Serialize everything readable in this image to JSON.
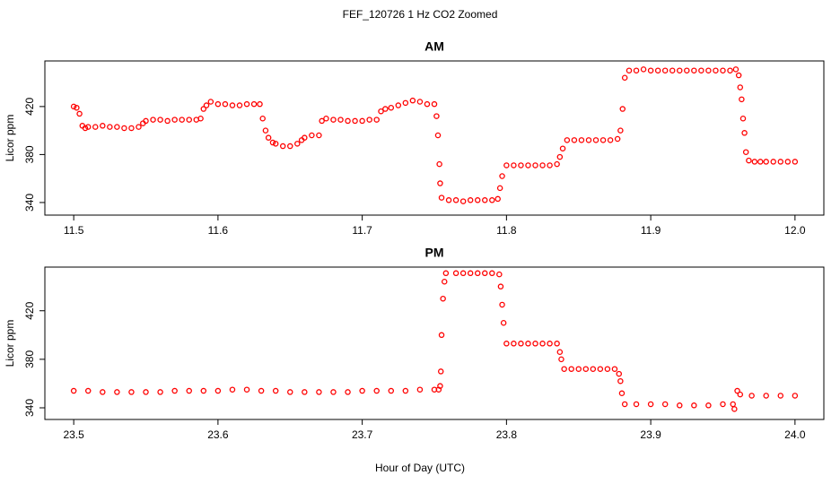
{
  "title": "FEF_120726  1 Hz CO2 Zoomed",
  "x_label": "Hour of Day (UTC)",
  "chart_data": [
    {
      "type": "scatter",
      "title": "AM",
      "y_label": "Licor ppm",
      "color": "#ff0000",
      "xlim": [
        11.48,
        12.02
      ],
      "ylim": [
        329.5,
        458
      ],
      "xticks": [
        11.5,
        11.6,
        11.7,
        11.8,
        11.9,
        {
          "value": 12,
          "label": "12.0"
        }
      ],
      "yticks": [
        340,
        380,
        420
      ],
      "x": [
        11.5,
        11.502,
        11.504,
        11.506,
        11.508,
        11.51,
        11.515,
        11.52,
        11.525,
        11.53,
        11.535,
        11.54,
        11.545,
        11.548,
        11.55,
        11.555,
        11.56,
        11.565,
        11.57,
        11.575,
        11.58,
        11.585,
        11.588,
        11.59,
        11.592,
        11.595,
        11.6,
        11.605,
        11.61,
        11.615,
        11.62,
        11.625,
        11.629,
        11.631,
        11.633,
        11.635,
        11.638,
        11.64,
        11.645,
        11.65,
        11.655,
        11.658,
        11.66,
        11.665,
        11.67,
        11.672,
        11.675,
        11.68,
        11.685,
        11.69,
        11.695,
        11.7,
        11.705,
        11.71,
        11.713,
        11.716,
        11.72,
        11.725,
        11.73,
        11.735,
        11.74,
        11.745,
        11.75,
        11.7515,
        11.7525,
        11.7535,
        11.754,
        11.755,
        11.76,
        11.765,
        11.77,
        11.775,
        11.78,
        11.785,
        11.79,
        11.794,
        11.7955,
        11.797,
        11.8,
        11.805,
        11.81,
        11.815,
        11.82,
        11.825,
        11.83,
        11.835,
        11.837,
        11.839,
        11.842,
        11.847,
        11.852,
        11.857,
        11.862,
        11.867,
        11.872,
        11.877,
        11.879,
        11.8805,
        11.882,
        11.885,
        11.89,
        11.895,
        11.9,
        11.905,
        11.91,
        11.915,
        11.92,
        11.925,
        11.93,
        11.935,
        11.94,
        11.945,
        11.95,
        11.955,
        11.959,
        11.961,
        11.962,
        11.963,
        11.964,
        11.965,
        11.966,
        11.968,
        11.972,
        11.976,
        11.98,
        11.985,
        11.99,
        11.995,
        12.0
      ],
      "values": [
        420,
        419,
        414,
        404,
        402,
        403,
        403,
        404,
        403,
        403,
        402,
        402,
        403,
        406,
        408,
        409,
        409,
        408,
        409,
        409,
        409,
        409,
        410,
        418,
        421,
        424,
        422,
        422,
        421,
        421,
        422,
        422,
        422,
        410,
        400,
        394,
        390,
        389,
        387,
        387,
        389,
        392,
        394,
        396,
        396,
        408,
        410,
        409,
        409,
        408,
        408,
        408,
        409,
        409,
        416,
        418,
        419,
        421,
        423,
        425,
        424,
        422,
        422,
        412,
        396,
        372,
        356,
        344,
        342,
        342,
        341,
        342,
        342,
        342,
        342,
        343,
        352,
        362,
        371,
        371,
        371,
        371,
        371,
        371,
        371,
        372,
        378,
        385,
        392,
        392,
        392,
        392,
        392,
        392,
        392,
        393,
        400,
        418,
        444,
        450,
        450,
        451,
        450,
        450,
        450,
        450,
        450,
        450,
        450,
        450,
        450,
        450,
        450,
        450,
        451,
        446,
        436,
        426,
        410,
        398,
        382,
        375,
        374,
        374,
        374,
        374,
        374,
        374,
        374
      ]
    },
    {
      "type": "scatter",
      "title": "PM",
      "y_label": "Licor ppm",
      "color": "#ff0000",
      "xlim": [
        23.48,
        24.02
      ],
      "ylim": [
        330.4,
        456
      ],
      "xticks": [
        23.5,
        23.6,
        23.7,
        23.8,
        23.9,
        {
          "value": 24,
          "label": "24.0"
        }
      ],
      "yticks": [
        340,
        380,
        420
      ],
      "x": [
        23.5,
        23.51,
        23.52,
        23.53,
        23.54,
        23.55,
        23.56,
        23.57,
        23.58,
        23.59,
        23.6,
        23.61,
        23.62,
        23.63,
        23.64,
        23.65,
        23.66,
        23.67,
        23.68,
        23.69,
        23.7,
        23.71,
        23.72,
        23.73,
        23.74,
        23.75,
        23.753,
        23.754,
        23.7545,
        23.755,
        23.756,
        23.757,
        23.758,
        23.765,
        23.77,
        23.775,
        23.78,
        23.785,
        23.79,
        23.795,
        23.796,
        23.797,
        23.798,
        23.8,
        23.805,
        23.81,
        23.815,
        23.82,
        23.825,
        23.83,
        23.835,
        23.837,
        23.838,
        23.84,
        23.845,
        23.85,
        23.855,
        23.86,
        23.865,
        23.87,
        23.875,
        23.878,
        23.879,
        23.88,
        23.882,
        23.89,
        23.9,
        23.91,
        23.92,
        23.93,
        23.94,
        23.95,
        23.957,
        23.958,
        23.96,
        23.962,
        23.97,
        23.98,
        23.99,
        24.0
      ],
      "values": [
        354,
        354,
        353,
        353,
        353,
        353,
        353,
        354,
        354,
        354,
        354,
        355,
        355,
        354,
        354,
        353,
        353,
        353,
        353,
        353,
        354,
        354,
        354,
        354,
        355,
        355,
        355,
        358,
        370,
        400,
        430,
        444,
        451,
        451,
        451,
        451,
        451,
        451,
        451,
        450,
        440,
        425,
        410,
        393,
        393,
        393,
        393,
        393,
        393,
        393,
        393,
        386,
        380,
        372,
        372,
        372,
        372,
        372,
        372,
        372,
        372,
        368,
        362,
        352,
        343,
        343,
        343,
        343,
        342,
        342,
        342,
        343,
        343,
        339,
        354,
        351,
        350,
        350,
        350,
        350
      ]
    }
  ]
}
